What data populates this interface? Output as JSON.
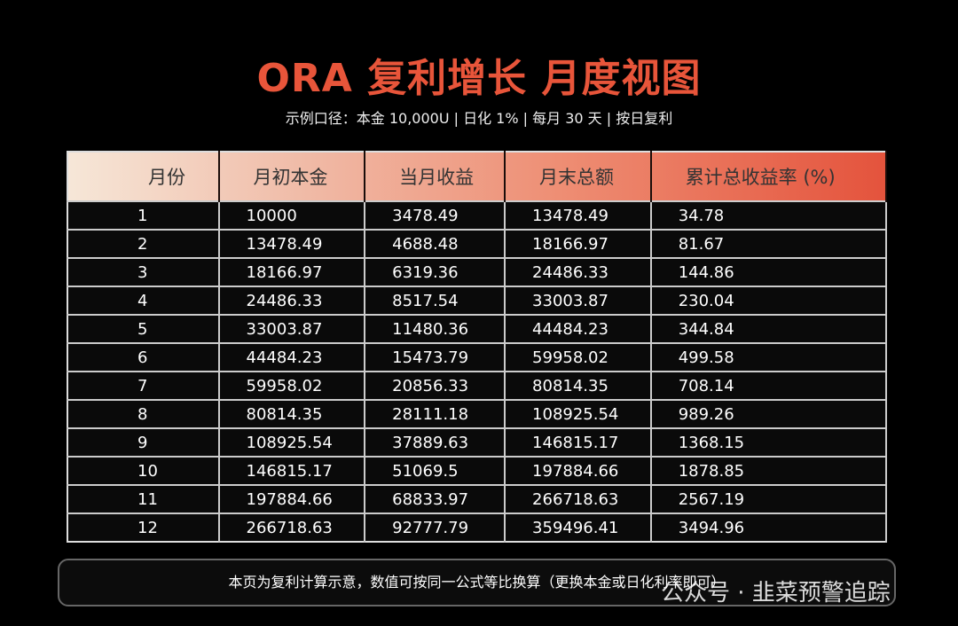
{
  "header": {
    "title": "ORA 复利增长 月度视图",
    "subtitle": "示例口径：本金 10,000U | 日化 1% | 每月 30 天 | 按日复利"
  },
  "table": {
    "columns": [
      "月份",
      "月初本金",
      "当月收益",
      "月末总额",
      "累计总收益率 (%)"
    ],
    "rows": [
      [
        "1",
        "10000",
        "3478.49",
        "13478.49",
        "34.78"
      ],
      [
        "2",
        "13478.49",
        "4688.48",
        "18166.97",
        "81.67"
      ],
      [
        "3",
        "18166.97",
        "6319.36",
        "24486.33",
        "144.86"
      ],
      [
        "4",
        "24486.33",
        "8517.54",
        "33003.87",
        "230.04"
      ],
      [
        "5",
        "33003.87",
        "11480.36",
        "44484.23",
        "344.84"
      ],
      [
        "6",
        "44484.23",
        "15473.79",
        "59958.02",
        "499.58"
      ],
      [
        "7",
        "59958.02",
        "20856.33",
        "80814.35",
        "708.14"
      ],
      [
        "8",
        "80814.35",
        "28111.18",
        "108925.54",
        "989.26"
      ],
      [
        "9",
        "108925.54",
        "37889.63",
        "146815.17",
        "1368.15"
      ],
      [
        "10",
        "146815.17",
        "51069.5",
        "197884.66",
        "1878.85"
      ],
      [
        "11",
        "197884.66",
        "68833.97",
        "266718.63",
        "2567.19"
      ],
      [
        "12",
        "266718.63",
        "92777.79",
        "359496.41",
        "3494.96"
      ]
    ]
  },
  "footer": {
    "note": "本页为复利计算示意，数值可按同一公式等比换算（更换本金或日化利率即可）",
    "watermark": "公众号 · 韭菜预警追踪"
  }
}
